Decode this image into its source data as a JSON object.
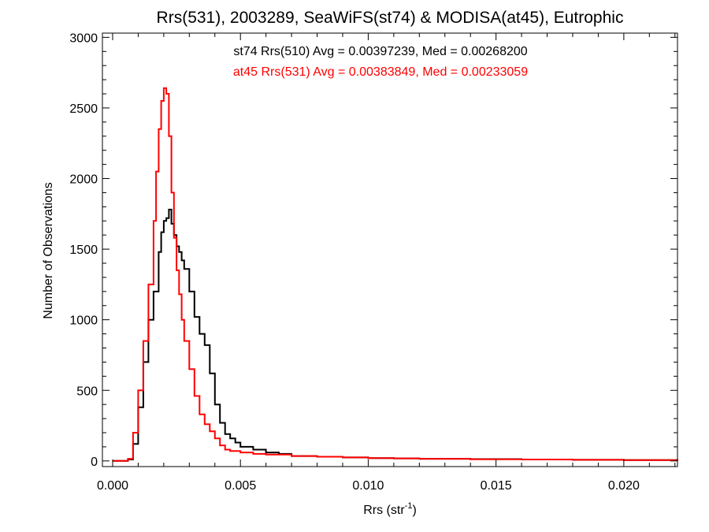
{
  "chart_data": {
    "type": "line",
    "title": "Rrs(531), 2003289, SeaWiFS(st74) & MODISA(at45), Eutrophic",
    "xlabel": {
      "base": "Rrs (str",
      "sup": "-1",
      "close": ")"
    },
    "ylabel": "Number of Observations",
    "xlim": [
      -0.0004,
      0.0221
    ],
    "ylim": [
      -40,
      3030
    ],
    "x_ticks": [
      0.0,
      0.005,
      0.01,
      0.015,
      0.02
    ],
    "x_tick_labels": [
      "0.000",
      "0.005",
      "0.010",
      "0.015",
      "0.020"
    ],
    "y_ticks": [
      0,
      500,
      1000,
      1500,
      2000,
      2500,
      3000
    ],
    "y_tick_labels": [
      "0",
      "500",
      "1000",
      "1500",
      "2000",
      "2500",
      "3000"
    ],
    "legend_position": "top-center",
    "grid": false,
    "series": [
      {
        "name": "st74 Rrs(510) Avg = 0.00397239, Med = 0.00268200",
        "color": "#000000",
        "x": [
          0.0,
          0.0006,
          0.0008,
          0.001,
          0.0012,
          0.0014,
          0.0016,
          0.0018,
          0.0019,
          0.002,
          0.0021,
          0.0022,
          0.0023,
          0.0024,
          0.0025,
          0.0026,
          0.0027,
          0.0028,
          0.003,
          0.0032,
          0.0034,
          0.0036,
          0.0038,
          0.004,
          0.0042,
          0.0044,
          0.0046,
          0.0048,
          0.005,
          0.0055,
          0.006,
          0.0065,
          0.007,
          0.008,
          0.009,
          0.01,
          0.011,
          0.012,
          0.014,
          0.016,
          0.018,
          0.02,
          0.0221
        ],
        "values": [
          0,
          10,
          120,
          380,
          700,
          1000,
          1200,
          1480,
          1620,
          1700,
          1720,
          1780,
          1680,
          1600,
          1520,
          1480,
          1420,
          1360,
          1200,
          1020,
          900,
          820,
          620,
          400,
          270,
          190,
          160,
          130,
          100,
          80,
          60,
          50,
          35,
          30,
          25,
          20,
          18,
          15,
          13,
          10,
          8,
          6,
          3
        ]
      },
      {
        "name": "at45 Rrs(531) Avg = 0.00383849, Med = 0.00233059",
        "color": "#ff0000",
        "x": [
          0.0,
          0.0006,
          0.0008,
          0.001,
          0.0012,
          0.0014,
          0.0016,
          0.0017,
          0.0018,
          0.0019,
          0.002,
          0.0021,
          0.0022,
          0.0023,
          0.0024,
          0.0025,
          0.0026,
          0.0027,
          0.0028,
          0.003,
          0.0032,
          0.0034,
          0.0036,
          0.0038,
          0.004,
          0.0042,
          0.0044,
          0.0046,
          0.005,
          0.0055,
          0.006,
          0.007,
          0.008,
          0.009,
          0.01,
          0.011,
          0.012,
          0.014,
          0.016,
          0.018,
          0.02,
          0.0221
        ],
        "values": [
          0,
          15,
          200,
          500,
          850,
          1250,
          1700,
          2050,
          2350,
          2550,
          2640,
          2600,
          2300,
          1900,
          1580,
          1350,
          1180,
          1000,
          850,
          650,
          460,
          330,
          260,
          210,
          160,
          110,
          80,
          70,
          60,
          50,
          45,
          35,
          30,
          25,
          20,
          18,
          15,
          12,
          10,
          8,
          6,
          3
        ]
      }
    ]
  }
}
